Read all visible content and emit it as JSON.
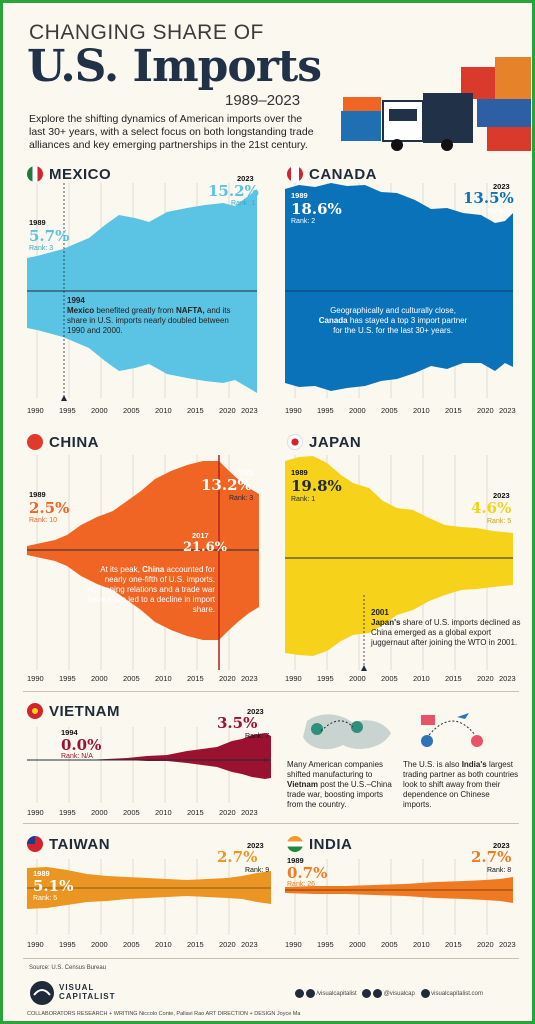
{
  "header": {
    "title_line1": "CHANGING SHARE OF",
    "title_line2": "U.S. Imports",
    "years": "1989–2023",
    "intro": "Explore the shifting dynamics of American imports over the last 30+ years, with a select focus on both longstanding trade alliances and key emerging partnerships in the 21st century."
  },
  "axis_labels": [
    "1990",
    "1995",
    "2000",
    "2005",
    "2010",
    "2015",
    "2020",
    "2023"
  ],
  "countries": {
    "mexico": {
      "name": "MEXICO",
      "start_year": "1989",
      "start_pct": "5.7%",
      "start_rank": "Rank: 3",
      "end_year": "2023",
      "end_pct": "15.2%",
      "end_rank": "Rank: 1",
      "event_year": "1994",
      "note_bold": "Mexico",
      "note1": " benefited greatly from ",
      "note_bold2": "NAFTA,",
      "note2": " and its share in U.S. imports nearly doubled between 1990 and 2000."
    },
    "canada": {
      "name": "CANADA",
      "start_year": "1989",
      "start_pct": "18.6%",
      "start_rank": "Rank: 2",
      "end_year": "2023",
      "end_pct": "13.5%",
      "end_rank": "Rank: 2",
      "note1": "Geographically and culturally close, ",
      "note_bold": "Canada",
      "note2": " has stayed a top 3 import partner for the U.S. for the last 30+ years."
    },
    "china": {
      "name": "CHINA",
      "start_year": "1989",
      "start_pct": "2.5%",
      "start_rank": "Rank: 10",
      "end_year": "2023",
      "end_pct": "13.2%",
      "end_rank": "Rank: 3",
      "peak_year": "2017",
      "peak_pct": "21.6%",
      "note1": "At its peak, ",
      "note_bold": "China",
      "note2": " accounted for nearly one-fifth of U.S. imports. Worsening relations and a trade war have since led to a decline in import share."
    },
    "japan": {
      "name": "JAPAN",
      "start_year": "1989",
      "start_pct": "19.8%",
      "start_rank": "Rank: 1",
      "end_year": "2023",
      "end_pct": "4.6%",
      "end_rank": "Rank: 5",
      "event_year": "2001",
      "note_bold": "Japan's",
      "note1": " share of U.S. imports declined as China emerged as a global export juggernaut after joining the WTO in 2001."
    },
    "vietnam": {
      "name": "VIETNAM",
      "start_year": "1994",
      "start_pct": "0.0%",
      "start_rank": "Rank: N/A",
      "end_year": "2023",
      "end_pct": "3.5%",
      "end_rank": "Rank: 7"
    },
    "taiwan": {
      "name": "TAIWAN",
      "start_year": "1989",
      "start_pct": "5.1%",
      "start_rank": "Rank: 5",
      "end_year": "2023",
      "end_pct": "2.7%",
      "end_rank": "Rank: 9"
    },
    "india": {
      "name": "INDIA",
      "start_year": "1989",
      "start_pct": "0.7%",
      "start_rank": "Rank: 26",
      "end_year": "2023",
      "end_pct": "2.7%",
      "end_rank": "Rank: 8"
    }
  },
  "side_notes": {
    "vietnam_note1": "Many American companies shifted manufacturing to ",
    "vietnam_bold": "Vietnam",
    "vietnam_note2": " post the U.S.–China trade war, boosting imports from the country.",
    "india_note1": "The U.S. is also ",
    "india_bold": "India's",
    "india_note2": " largest trading partner as both countries look to shift away from their dependence on Chinese imports."
  },
  "footer": {
    "source": "Source: U.S. Census Bureau",
    "brand_line1": "VISUAL",
    "brand_line2": "CAPITALIST",
    "social1": "/visualcapitalist",
    "social2": "@visualcap",
    "social3": "visualcapitalist.com",
    "credits": "COLLABORATORS   RESEARCH + WRITING Niccolo Conte, Pallavi Rao   ART DIRECTION + DESIGN Joyce Ma"
  },
  "colors": {
    "mexico": "#5bc3e4",
    "canada": "#0a72b8",
    "china": "#f06524",
    "japan": "#f6d21a",
    "vietnam": "#9b1230",
    "taiwan": "#eb9623",
    "india": "#ef7a22",
    "title": "#203148"
  },
  "chart_data": [
    {
      "type": "area",
      "title": "MEXICO",
      "x": [
        1989,
        1994,
        2000,
        2005,
        2010,
        2015,
        2020,
        2023
      ],
      "values": [
        5.7,
        6.9,
        11.2,
        10.3,
        12.0,
        13.3,
        13.9,
        15.2
      ]
    },
    {
      "type": "area",
      "title": "CANADA",
      "x": [
        1989,
        1994,
        2000,
        2005,
        2010,
        2015,
        2020,
        2023
      ],
      "values": [
        18.6,
        19.3,
        18.8,
        17.4,
        14.2,
        13.2,
        11.6,
        13.5
      ]
    },
    {
      "type": "area",
      "title": "CHINA",
      "x": [
        1989,
        1994,
        2000,
        2005,
        2010,
        2015,
        2017,
        2020,
        2023
      ],
      "values": [
        2.5,
        5.9,
        8.2,
        14.6,
        19.5,
        21.5,
        21.6,
        18.6,
        13.2
      ]
    },
    {
      "type": "area",
      "title": "JAPAN",
      "x": [
        1989,
        1994,
        2000,
        2001,
        2005,
        2010,
        2015,
        2020,
        2023
      ],
      "values": [
        19.8,
        17.9,
        12.0,
        11.1,
        8.3,
        6.3,
        5.8,
        4.8,
        4.6
      ]
    },
    {
      "type": "area",
      "title": "VIETNAM",
      "x": [
        1994,
        2000,
        2005,
        2010,
        2015,
        2020,
        2023
      ],
      "values": [
        0.0,
        0.1,
        0.4,
        0.8,
        1.7,
        3.4,
        3.5
      ]
    },
    {
      "type": "area",
      "title": "TAIWAN",
      "x": [
        1989,
        1994,
        2000,
        2005,
        2010,
        2015,
        2020,
        2023
      ],
      "values": [
        5.1,
        3.7,
        3.3,
        2.1,
        1.9,
        1.8,
        2.3,
        2.7
      ]
    },
    {
      "type": "area",
      "title": "INDIA",
      "x": [
        1989,
        1994,
        2000,
        2005,
        2010,
        2015,
        2020,
        2023
      ],
      "values": [
        0.7,
        0.8,
        0.9,
        1.1,
        1.5,
        2.0,
        2.1,
        2.7
      ]
    }
  ]
}
